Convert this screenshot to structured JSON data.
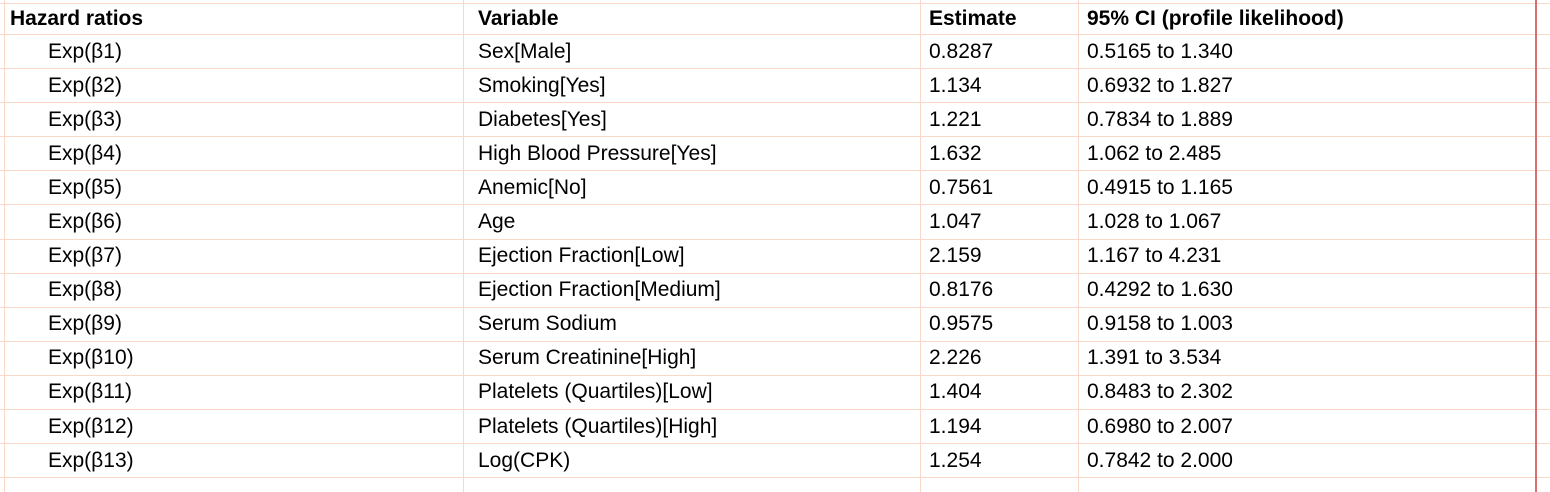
{
  "table": {
    "columns": {
      "hazard": "Hazard ratios",
      "variable": "Variable",
      "estimate": "Estimate",
      "ci": "95% CI (profile likelihood)"
    },
    "rows": [
      {
        "hazard": "Exp(β1)",
        "variable": "Sex[Male]",
        "estimate": "0.8287",
        "ci": "0.5165 to 1.340"
      },
      {
        "hazard": "Exp(β2)",
        "variable": "Smoking[Yes]",
        "estimate": "1.134",
        "ci": "0.6932 to 1.827"
      },
      {
        "hazard": "Exp(β3)",
        "variable": "Diabetes[Yes]",
        "estimate": "1.221",
        "ci": "0.7834 to 1.889"
      },
      {
        "hazard": "Exp(β4)",
        "variable": "High Blood Pressure[Yes]",
        "estimate": "1.632",
        "ci": "1.062 to 2.485"
      },
      {
        "hazard": "Exp(β5)",
        "variable": "Anemic[No]",
        "estimate": "0.7561",
        "ci": "0.4915 to 1.165"
      },
      {
        "hazard": "Exp(β6)",
        "variable": "Age",
        "estimate": "1.047",
        "ci": "1.028 to 1.067"
      },
      {
        "hazard": "Exp(β7)",
        "variable": "Ejection Fraction[Low]",
        "estimate": "2.159",
        "ci": "1.167 to 4.231"
      },
      {
        "hazard": "Exp(β8)",
        "variable": "Ejection Fraction[Medium]",
        "estimate": "0.8176",
        "ci": "0.4292 to 1.630"
      },
      {
        "hazard": "Exp(β9)",
        "variable": "Serum Sodium",
        "estimate": "0.9575",
        "ci": "0.9158 to 1.003"
      },
      {
        "hazard": "Exp(β10)",
        "variable": "Serum Creatinine[High]",
        "estimate": "2.226",
        "ci": "1.391 to 3.534"
      },
      {
        "hazard": "Exp(β11)",
        "variable": "Platelets (Quartiles)[Low]",
        "estimate": "1.404",
        "ci": "0.8483 to 2.302"
      },
      {
        "hazard": "Exp(β12)",
        "variable": "Platelets (Quartiles)[High]",
        "estimate": "1.194",
        "ci": "0.6980 to 2.007"
      },
      {
        "hazard": "Exp(β13)",
        "variable": "Log(CPK)",
        "estimate": "1.254",
        "ci": "0.7842 to 2.000"
      }
    ]
  },
  "colors": {
    "grid_line": "#fad8c7",
    "accent_line": "#dd6e6e",
    "text": "#000000",
    "background": "#ffffff"
  }
}
